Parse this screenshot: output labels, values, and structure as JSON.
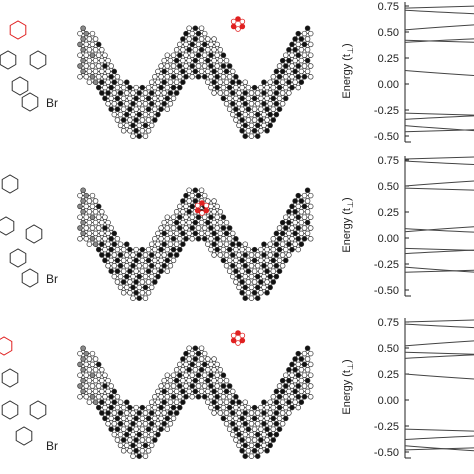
{
  "figure": {
    "substituent_label": "Br",
    "rows": [
      {
        "ylabel": "Energy (t",
        "ylabel_sub": "⊥",
        "ylabel_close": ")",
        "y_ticks": [
          "0.75",
          "0.50",
          "0.25",
          "0.00",
          "-0.25",
          "-0.50"
        ],
        "y_values": [
          0.75,
          0.5,
          0.25,
          0.0,
          -0.25,
          -0.5
        ],
        "ylim": [
          -0.5,
          0.75
        ]
      },
      {
        "ylabel": "Energy (t",
        "ylabel_sub": "⊥",
        "ylabel_close": ")",
        "y_ticks": [
          "0.75",
          "0.50",
          "0.25",
          "0.00",
          "-0.25",
          "-0.50"
        ],
        "y_values": [
          0.75,
          0.5,
          0.25,
          0.0,
          -0.25,
          -0.5
        ],
        "ylim": [
          -0.5,
          0.75
        ]
      },
      {
        "ylabel": "Energy (t",
        "ylabel_sub": "⊥",
        "ylabel_close": ")",
        "y_ticks": [
          "0.75",
          "0.50",
          "0.25",
          "0.00",
          "-0.25",
          "-0.50"
        ],
        "y_values": [
          0.75,
          0.5,
          0.25,
          0.0,
          -0.25,
          -0.5
        ],
        "ylim": [
          -0.5,
          0.75
        ]
      }
    ]
  },
  "chart_data": [
    {
      "type": "line",
      "ylabel": "Energy (t⊥)",
      "ylim": [
        -0.5,
        0.75
      ],
      "bands_at_left_edge": [
        0.73,
        0.71,
        0.52,
        0.42,
        0.4,
        0.13,
        -0.28,
        -0.34,
        -0.4,
        -0.46
      ]
    },
    {
      "type": "line",
      "ylabel": "Energy (t⊥)",
      "ylim": [
        -0.5,
        0.75
      ],
      "bands_at_left_edge": [
        0.76,
        0.74,
        0.5,
        0.48,
        0.09,
        0.06,
        -0.1,
        -0.15,
        -0.28,
        -0.33
      ]
    },
    {
      "type": "line",
      "ylabel": "Energy (t⊥)",
      "ylim": [
        -0.5,
        0.75
      ],
      "bands_at_left_edge": [
        0.75,
        0.73,
        0.52,
        0.46,
        0.4,
        0.25,
        -0.28,
        -0.38,
        -0.44,
        -0.48
      ]
    }
  ],
  "colors": {
    "atom_black": "#111111",
    "atom_gray": "#8a8a8a",
    "atom_white": "#ffffff",
    "highlight_red": "#e02020",
    "bond": "#333333",
    "band_line": "#444444",
    "axis": "#222222"
  }
}
